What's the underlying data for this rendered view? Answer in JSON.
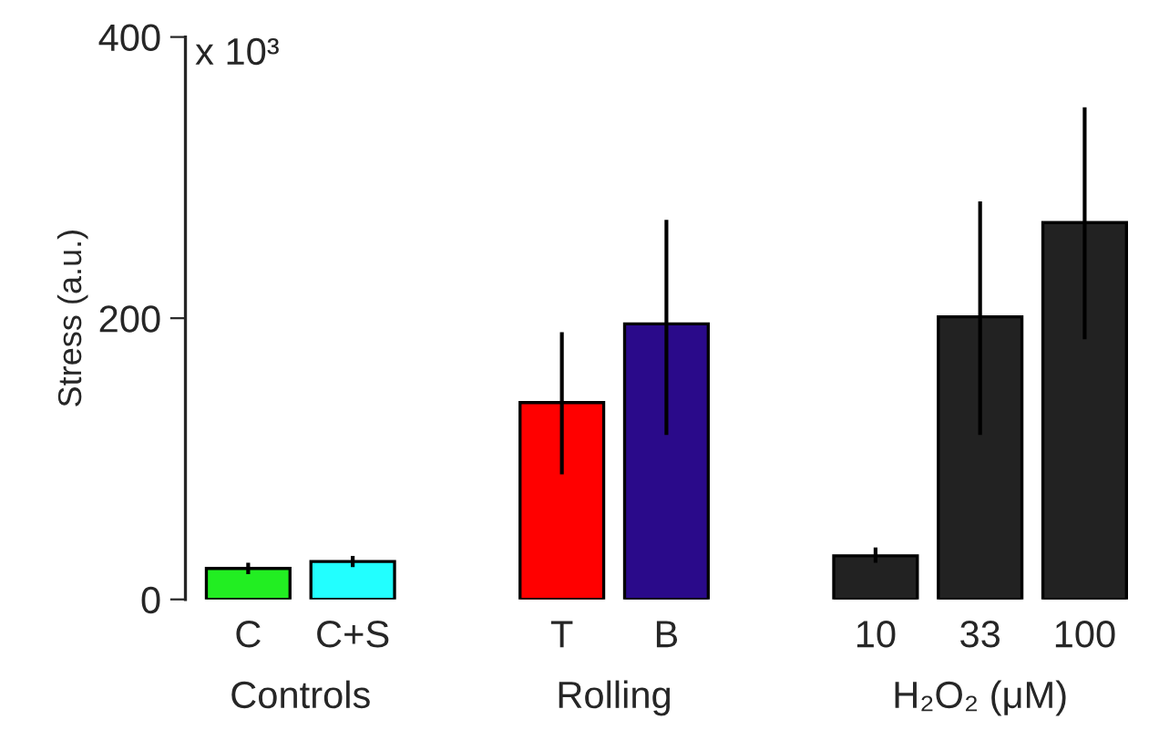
{
  "chart_data": {
    "type": "bar",
    "ylabel": "Stress (a.u.)",
    "categories": [
      "C",
      "C+S",
      null,
      "T",
      "B",
      null,
      "10",
      "33",
      "100"
    ],
    "values": [
      22,
      27,
      null,
      140,
      196,
      null,
      31,
      201,
      268
    ],
    "colors": [
      "#22ee22",
      "#22ffff",
      null,
      "#ff0000",
      "#2a0a8a",
      null,
      "#222222",
      "#222222",
      "#222222"
    ],
    "errors": [
      [
        18,
        26
      ],
      [
        23,
        31
      ],
      null,
      [
        89,
        190
      ],
      [
        117,
        270
      ],
      null,
      [
        26,
        37
      ],
      [
        117,
        283
      ],
      [
        185,
        350
      ]
    ],
    "ylim": [
      0,
      400
    ],
    "yticks": [
      0,
      200,
      400
    ],
    "grid": false,
    "legend": false,
    "annotations": [
      "x 10³",
      "Controls",
      "Rolling",
      "H₂O₂ (μM)"
    ]
  }
}
